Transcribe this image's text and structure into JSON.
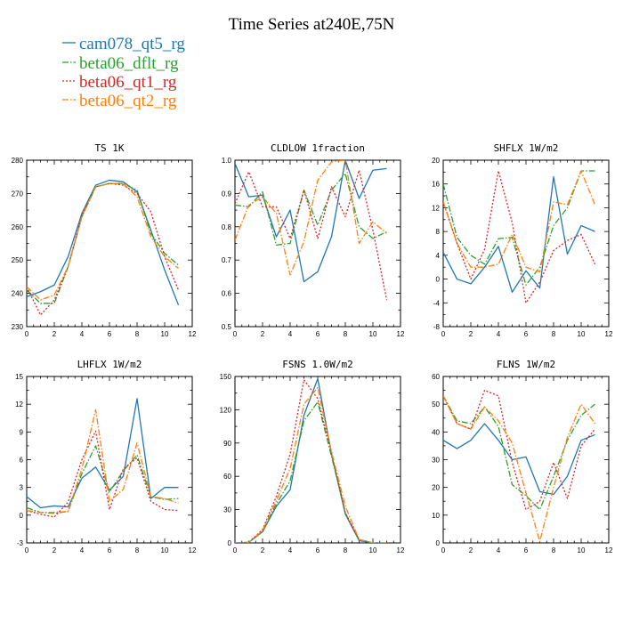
{
  "figure_title": "Time Series at240E,75N",
  "legend": [
    {
      "name": "cam078_qt5_rg",
      "color": "#1f77b4",
      "dash": "solid"
    },
    {
      "name": "beta06_dflt_rg",
      "color": "#2ca02c",
      "dash": "dashdot"
    },
    {
      "name": "beta06_qt1_rg",
      "color": "#d62728",
      "dash": "dotted"
    },
    {
      "name": "beta06_qt2_rg",
      "color": "#ff7f0e",
      "dash": "dashdot"
    }
  ],
  "chart_data": [
    {
      "type": "line",
      "title": "TS   1K",
      "x": [
        0,
        1,
        2,
        3,
        4,
        5,
        6,
        7,
        8,
        9,
        10,
        11
      ],
      "xlim": [
        0,
        12
      ],
      "xticks": [
        0,
        2,
        4,
        6,
        8,
        10,
        12
      ],
      "ylim": [
        230,
        280
      ],
      "yticks": [
        230,
        240,
        250,
        260,
        270,
        280
      ],
      "series": [
        {
          "name": "cam078_qt5_rg",
          "values": [
            239,
            240.5,
            242.5,
            251,
            264,
            272.5,
            274,
            273.5,
            270.5,
            259,
            247,
            236.5
          ]
        },
        {
          "name": "beta06_dflt_rg",
          "values": [
            241,
            237,
            237,
            248,
            263,
            272,
            273,
            273,
            271,
            258,
            252,
            248.5
          ]
        },
        {
          "name": "beta06_qt1_rg",
          "values": [
            242,
            233.5,
            238,
            248,
            263.5,
            272,
            273,
            272.5,
            270,
            264.5,
            251,
            241
          ]
        },
        {
          "name": "beta06_qt2_rg",
          "values": [
            242,
            238,
            239.5,
            248,
            263,
            272,
            273,
            273,
            269,
            257,
            251,
            247.5
          ]
        }
      ]
    },
    {
      "type": "line",
      "title": "CLDLOW   1fraction",
      "x": [
        0,
        1,
        2,
        3,
        4,
        5,
        6,
        7,
        8,
        9,
        10,
        11
      ],
      "xlim": [
        0,
        12
      ],
      "xticks": [
        0,
        2,
        4,
        6,
        8,
        10,
        12
      ],
      "ylim": [
        0.5,
        1.0
      ],
      "yticks": [
        0.5,
        0.6,
        0.7,
        0.8,
        0.9,
        1.0
      ],
      "series": [
        {
          "name": "cam078_qt5_rg",
          "values": [
            0.99,
            0.89,
            0.895,
            0.77,
            0.85,
            0.635,
            0.665,
            0.77,
            1.0,
            0.885,
            0.97,
            0.975
          ]
        },
        {
          "name": "beta06_dflt_rg",
          "values": [
            0.865,
            0.86,
            0.905,
            0.745,
            0.75,
            0.91,
            0.805,
            0.91,
            0.96,
            0.8,
            0.765,
            0.785
          ]
        },
        {
          "name": "beta06_qt1_rg",
          "values": [
            0.87,
            0.965,
            0.86,
            0.86,
            0.765,
            0.91,
            0.765,
            0.92,
            0.83,
            0.97,
            0.79,
            0.58
          ]
        },
        {
          "name": "beta06_qt2_rg",
          "values": [
            0.76,
            0.865,
            0.89,
            0.84,
            0.655,
            0.755,
            0.94,
            0.995,
            1.0,
            0.75,
            0.815,
            0.78
          ]
        }
      ]
    },
    {
      "type": "line",
      "title": "SHFLX   1W/m2",
      "x": [
        0,
        1,
        2,
        3,
        4,
        5,
        6,
        7,
        8,
        9,
        10,
        11
      ],
      "xlim": [
        0,
        12
      ],
      "xticks": [
        0,
        2,
        4,
        6,
        8,
        10,
        12
      ],
      "ylim": [
        -8,
        20
      ],
      "yticks": [
        -8,
        -4,
        0,
        4,
        8,
        12,
        16,
        20
      ],
      "series": [
        {
          "name": "cam078_qt5_rg",
          "values": [
            4.5,
            0,
            -0.8,
            2,
            5.5,
            -2.2,
            1.4,
            -1.5,
            17.2,
            4.2,
            9,
            8
          ]
        },
        {
          "name": "beta06_dflt_rg",
          "values": [
            16,
            7,
            4,
            2.5,
            6.8,
            7,
            -1,
            2,
            9,
            12,
            18.2,
            18.2
          ]
        },
        {
          "name": "beta06_qt1_rg",
          "values": [
            13,
            6,
            0,
            5,
            18.2,
            9.5,
            -4,
            -0.5,
            4.8,
            6.5,
            7.5,
            2.5
          ]
        },
        {
          "name": "beta06_qt2_rg",
          "values": [
            13,
            6,
            2,
            2,
            2.5,
            7.5,
            2,
            1.2,
            13,
            12.5,
            18.2,
            12.5
          ]
        }
      ]
    },
    {
      "type": "line",
      "title": "LHFLX   1W/m2",
      "x": [
        0,
        1,
        2,
        3,
        4,
        5,
        6,
        7,
        8,
        9,
        10,
        11
      ],
      "xlim": [
        0,
        12
      ],
      "xticks": [
        0,
        2,
        4,
        6,
        8,
        10,
        12
      ],
      "ylim": [
        -3,
        15
      ],
      "yticks": [
        -3,
        0,
        3,
        6,
        9,
        12,
        15
      ],
      "series": [
        {
          "name": "cam078_qt5_rg",
          "values": [
            2,
            0.8,
            1,
            0.9,
            4,
            5.2,
            2.7,
            4.2,
            12.6,
            1.8,
            3,
            3
          ]
        },
        {
          "name": "beta06_dflt_rg",
          "values": [
            0.8,
            0.3,
            0.2,
            0.4,
            4.5,
            7.5,
            2.5,
            4.8,
            6.5,
            2,
            1.7,
            1.8
          ]
        },
        {
          "name": "beta06_qt1_rg",
          "values": [
            0.5,
            0.1,
            -0.2,
            1.4,
            6,
            9.1,
            0.6,
            5,
            6.2,
            1.5,
            0.6,
            0.5
          ]
        },
        {
          "name": "beta06_qt2_rg",
          "values": [
            0.5,
            0.3,
            0.3,
            0.4,
            5,
            11.4,
            1.5,
            2.8,
            7.8,
            2,
            1.8,
            1.3
          ]
        }
      ]
    },
    {
      "type": "line",
      "title": "FSNS   1.0W/m2",
      "x": [
        0,
        1,
        2,
        3,
        4,
        5,
        6,
        7,
        8,
        9,
        10,
        11
      ],
      "xlim": [
        0,
        12
      ],
      "xticks": [
        0,
        2,
        4,
        6,
        8,
        10,
        12
      ],
      "ylim": [
        0,
        150
      ],
      "yticks": [
        0,
        30,
        60,
        90,
        120,
        150
      ],
      "series": [
        {
          "name": "cam078_qt5_rg",
          "values": [
            0,
            0.5,
            10,
            33,
            48,
            115,
            148,
            80,
            26,
            2,
            0,
            0
          ]
        },
        {
          "name": "beta06_dflt_rg",
          "values": [
            0,
            0.5,
            10,
            35,
            56,
            110,
            127,
            78,
            27,
            3,
            0,
            0
          ]
        },
        {
          "name": "beta06_qt1_rg",
          "values": [
            0,
            0.5,
            12,
            42,
            80,
            147,
            130,
            82,
            27,
            3,
            0,
            0
          ]
        },
        {
          "name": "beta06_qt2_rg",
          "values": [
            0,
            0.5,
            11,
            38,
            67,
            125,
            140,
            82,
            33,
            3,
            0,
            0
          ]
        }
      ]
    },
    {
      "type": "line",
      "title": "FLNS   1W/m2",
      "x": [
        0,
        1,
        2,
        3,
        4,
        5,
        6,
        7,
        8,
        9,
        10,
        11
      ],
      "xlim": [
        0,
        12
      ],
      "xticks": [
        0,
        2,
        4,
        6,
        8,
        10,
        12
      ],
      "ylim": [
        0,
        60
      ],
      "yticks": [
        0,
        10,
        20,
        30,
        40,
        50,
        60
      ],
      "series": [
        {
          "name": "cam078_qt5_rg",
          "values": [
            37,
            34,
            37,
            43,
            37,
            30,
            31,
            18.5,
            17.5,
            24,
            37,
            39
          ]
        },
        {
          "name": "beta06_dflt_rg",
          "values": [
            53,
            44,
            43,
            49,
            42,
            21,
            17,
            12,
            24,
            37,
            46,
            50
          ]
        },
        {
          "name": "beta06_qt1_rg",
          "values": [
            53,
            43,
            41,
            55,
            53,
            29,
            12,
            15,
            29,
            16,
            35,
            41
          ]
        },
        {
          "name": "beta06_qt2_rg",
          "values": [
            53,
            43,
            41,
            49,
            44,
            36,
            18,
            0.5,
            20,
            38,
            50,
            43
          ]
        }
      ]
    }
  ]
}
